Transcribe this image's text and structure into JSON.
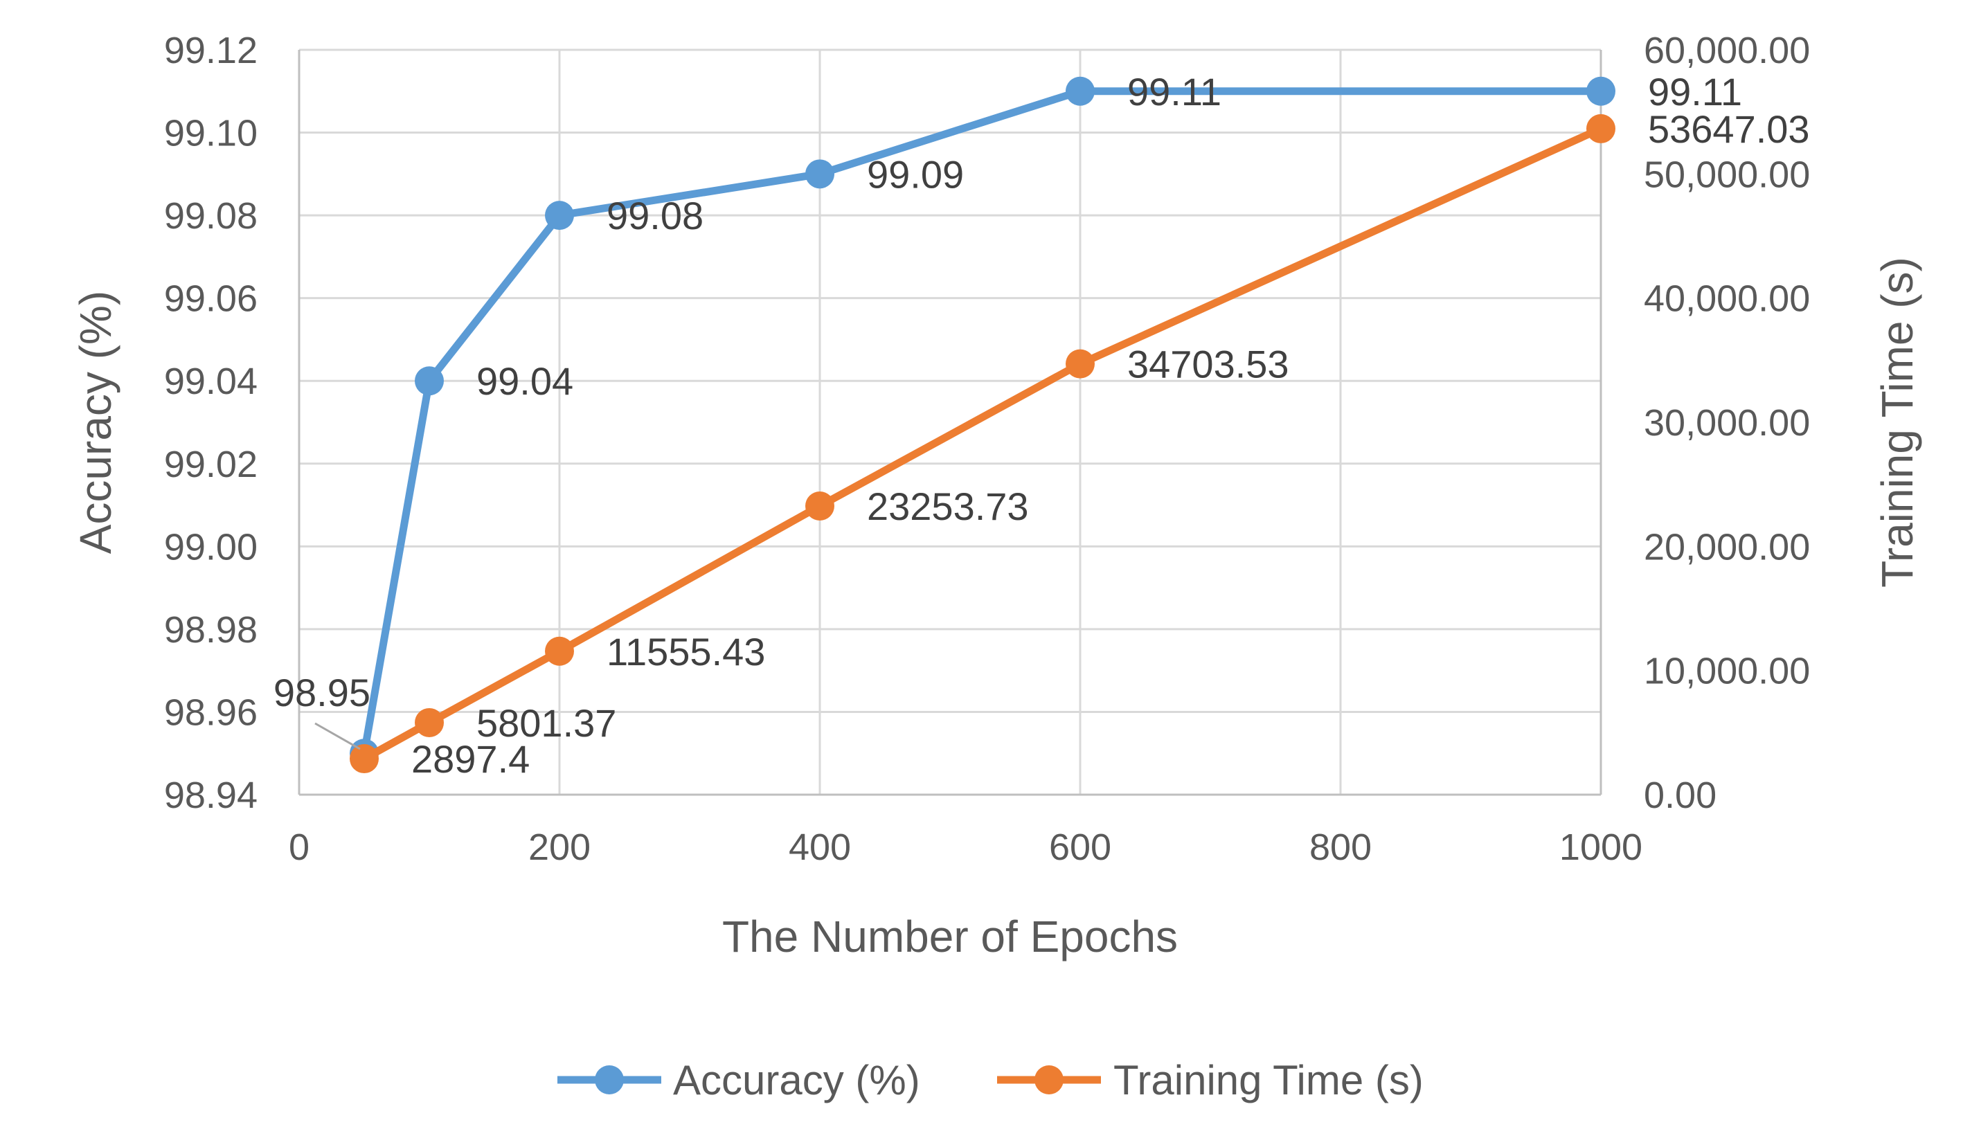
{
  "chart_data": {
    "type": "line",
    "title": "",
    "xlabel": "The Number of Epochs",
    "ylabel": "Accuracy (%)",
    "y2label": "Training Time (s)",
    "xlim": [
      0,
      1000
    ],
    "ylim": [
      98.94,
      99.12
    ],
    "y2lim": [
      0,
      60000
    ],
    "x_ticks": [
      0,
      200,
      400,
      600,
      800,
      1000
    ],
    "x_tick_labels": [
      "0",
      "200",
      "400",
      "600",
      "800",
      "1000"
    ],
    "y_ticks": [
      98.94,
      98.96,
      98.98,
      99.0,
      99.02,
      99.04,
      99.06,
      99.08,
      99.1,
      99.12
    ],
    "y_tick_labels": [
      "98.94",
      "98.96",
      "98.98",
      "99.00",
      "99.02",
      "99.04",
      "99.06",
      "99.08",
      "99.10",
      "99.12"
    ],
    "y2_ticks": [
      0,
      10000,
      20000,
      30000,
      40000,
      50000,
      60000
    ],
    "y2_tick_labels": [
      "0.00",
      "10,000.00",
      "20,000.00",
      "30,000.00",
      "40,000.00",
      "50,000.00",
      "60,000.00"
    ],
    "grid": true,
    "legend_position": "bottom",
    "series": [
      {
        "name": "Accuracy (%)",
        "axis": "left",
        "color": "#5B9BD5",
        "x": [
          50,
          100,
          200,
          400,
          600,
          1000
        ],
        "y": [
          98.95,
          99.04,
          99.08,
          99.09,
          99.11,
          99.11
        ],
        "labels": [
          "98.95",
          "99.04",
          "99.08",
          "99.09",
          "99.11",
          "99.11"
        ]
      },
      {
        "name": "Training Time (s)",
        "axis": "right",
        "color": "#ED7D31",
        "x": [
          50,
          100,
          200,
          400,
          600,
          1000
        ],
        "y": [
          2897.4,
          5801.37,
          11555.43,
          23253.73,
          34703.53,
          53647.03
        ],
        "labels": [
          "2897.4",
          "5801.37",
          "11555.43",
          "23253.73",
          "34703.53",
          "53647.03"
        ]
      }
    ]
  }
}
